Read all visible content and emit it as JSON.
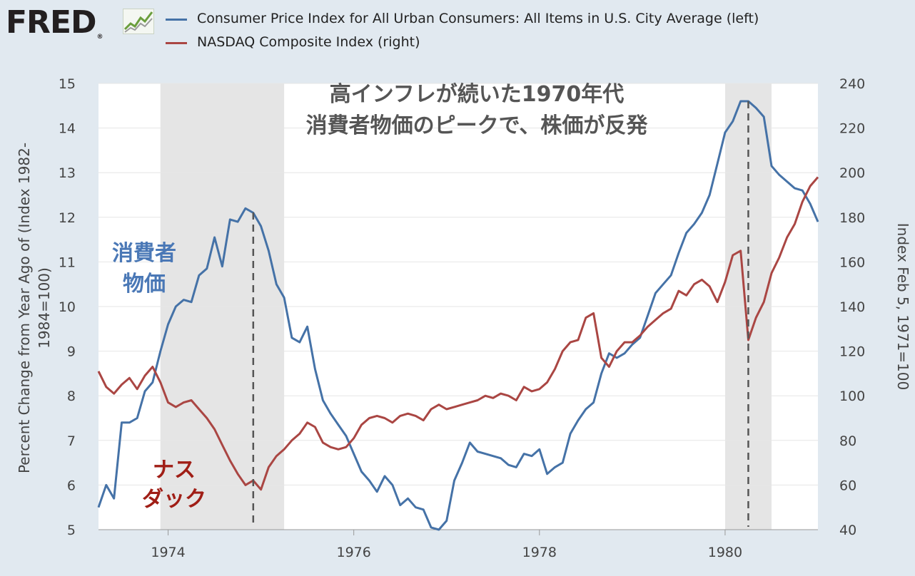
{
  "header": {
    "logo_text": "FRED",
    "logo_registered": "®",
    "legend": [
      {
        "label": "Consumer Price Index for All Urban Consumers: All Items in U.S. City Average (left)",
        "color": "#4572a7"
      },
      {
        "label": "NASDAQ Composite Index (right)",
        "color": "#aa4643"
      }
    ]
  },
  "chart_data": {
    "type": "line",
    "title": [
      "高インフレが続いた1970年代",
      "消費者物価のピークで、株価が反発"
    ],
    "ylabel_left": [
      "Percent Change from Year Ago of (Index 1982-",
      "1984=100)"
    ],
    "ylabel_right": "Index Feb 5, 1971=100",
    "x_ticks": [
      "1974",
      "1976",
      "1978",
      "1980"
    ],
    "y_left_ticks": [
      "5",
      "6",
      "7",
      "8",
      "9",
      "10",
      "11",
      "12",
      "13",
      "14",
      "15"
    ],
    "y_right_ticks": [
      "40",
      "60",
      "80",
      "100",
      "120",
      "140",
      "160",
      "180",
      "200",
      "220",
      "240"
    ],
    "xlim": [
      1973.25,
      1981.0
    ],
    "ylim_left": [
      5,
      15
    ],
    "ylim_right": [
      40,
      240
    ],
    "grid": "horizontal",
    "recessions": [
      [
        1973.917,
        1975.25
      ],
      [
        1980.0,
        1980.5
      ]
    ],
    "markers": [
      1974.917,
      1980.25
    ],
    "annotations": {
      "cpi": [
        "消費者",
        "物価"
      ],
      "nasdaq": [
        "ナス",
        "ダック"
      ]
    },
    "series": [
      {
        "name": "Consumer Price Index for All Urban Consumers: All Items in U.S. City Average (left)",
        "axis": "left",
        "color": "#4572a7",
        "x": [
          1973.25,
          1973.333,
          1973.417,
          1973.5,
          1973.583,
          1973.667,
          1973.75,
          1973.833,
          1973.917,
          1974.0,
          1974.083,
          1974.167,
          1974.25,
          1974.333,
          1974.417,
          1974.5,
          1974.583,
          1974.667,
          1974.75,
          1974.833,
          1974.917,
          1975.0,
          1975.083,
          1975.167,
          1975.25,
          1975.333,
          1975.417,
          1975.5,
          1975.583,
          1975.667,
          1975.75,
          1975.833,
          1975.917,
          1976.0,
          1976.083,
          1976.167,
          1976.25,
          1976.333,
          1976.417,
          1976.5,
          1976.583,
          1976.667,
          1976.75,
          1976.833,
          1976.917,
          1977.0,
          1977.083,
          1977.167,
          1977.25,
          1977.333,
          1977.417,
          1977.5,
          1977.583,
          1977.667,
          1977.75,
          1977.833,
          1977.917,
          1978.0,
          1978.083,
          1978.167,
          1978.25,
          1978.333,
          1978.417,
          1978.5,
          1978.583,
          1978.667,
          1978.75,
          1978.833,
          1978.917,
          1979.0,
          1979.083,
          1979.167,
          1979.25,
          1979.333,
          1979.417,
          1979.5,
          1979.583,
          1979.667,
          1979.75,
          1979.833,
          1979.917,
          1980.0,
          1980.083,
          1980.167,
          1980.25,
          1980.333,
          1980.417,
          1980.5,
          1980.583,
          1980.667,
          1980.75,
          1980.833,
          1980.917,
          1981.0
        ],
        "values": [
          5.5,
          6.0,
          5.7,
          7.4,
          7.4,
          7.5,
          8.1,
          8.3,
          9.0,
          9.6,
          10.0,
          10.15,
          10.1,
          10.7,
          10.85,
          11.55,
          10.9,
          11.95,
          11.9,
          12.2,
          12.1,
          11.8,
          11.25,
          10.5,
          10.2,
          9.3,
          9.2,
          9.55,
          8.6,
          7.9,
          7.6,
          7.35,
          7.1,
          6.7,
          6.3,
          6.1,
          5.85,
          6.2,
          6.0,
          5.55,
          5.7,
          5.5,
          5.45,
          5.05,
          5.0,
          5.2,
          6.1,
          6.5,
          6.95,
          6.75,
          6.7,
          6.65,
          6.6,
          6.45,
          6.4,
          6.7,
          6.65,
          6.8,
          6.25,
          6.4,
          6.5,
          7.15,
          7.45,
          7.7,
          7.85,
          8.5,
          8.95,
          8.85,
          8.95,
          9.15,
          9.3,
          9.8,
          10.3,
          10.5,
          10.7,
          11.2,
          11.65,
          11.85,
          12.1,
          12.5,
          13.2,
          13.9,
          14.15,
          14.6,
          14.6,
          14.45,
          14.25,
          13.15,
          12.95,
          12.8,
          12.65,
          12.6,
          12.3,
          11.9
        ]
      },
      {
        "name": "NASDAQ Composite Index (right)",
        "axis": "right",
        "color": "#aa4643",
        "x": [
          1973.25,
          1973.333,
          1973.417,
          1973.5,
          1973.583,
          1973.667,
          1973.75,
          1973.833,
          1973.917,
          1974.0,
          1974.083,
          1974.167,
          1974.25,
          1974.333,
          1974.417,
          1974.5,
          1974.583,
          1974.667,
          1974.75,
          1974.833,
          1974.917,
          1975.0,
          1975.083,
          1975.167,
          1975.25,
          1975.333,
          1975.417,
          1975.5,
          1975.583,
          1975.667,
          1975.75,
          1975.833,
          1975.917,
          1976.0,
          1976.083,
          1976.167,
          1976.25,
          1976.333,
          1976.417,
          1976.5,
          1976.583,
          1976.667,
          1976.75,
          1976.833,
          1976.917,
          1977.0,
          1977.083,
          1977.167,
          1977.25,
          1977.333,
          1977.417,
          1977.5,
          1977.583,
          1977.667,
          1977.75,
          1977.833,
          1977.917,
          1978.0,
          1978.083,
          1978.167,
          1978.25,
          1978.333,
          1978.417,
          1978.5,
          1978.583,
          1978.667,
          1978.75,
          1978.833,
          1978.917,
          1979.0,
          1979.083,
          1979.167,
          1979.25,
          1979.333,
          1979.417,
          1979.5,
          1979.583,
          1979.667,
          1979.75,
          1979.833,
          1979.917,
          1980.0,
          1980.083,
          1980.167,
          1980.25,
          1980.333,
          1980.417,
          1980.5,
          1980.583,
          1980.667,
          1980.75,
          1980.833,
          1980.917,
          1981.0
        ],
        "values": [
          111,
          104,
          101,
          105,
          108,
          103,
          109,
          113,
          106,
          97,
          95,
          97,
          98,
          94,
          90,
          85,
          78,
          71,
          65,
          60,
          62,
          58,
          68,
          73,
          76,
          80,
          83,
          88,
          86,
          79,
          77,
          76,
          77,
          81,
          87,
          90,
          91,
          90,
          88,
          91,
          92,
          91,
          89,
          94,
          96,
          94,
          95,
          96,
          97,
          98,
          100,
          99,
          101,
          100,
          98,
          104,
          102,
          103,
          106,
          112,
          120,
          124,
          125,
          135,
          137,
          117,
          113,
          120,
          124,
          124,
          127,
          131,
          134,
          137,
          139,
          147,
          145,
          150,
          152,
          149,
          142,
          151,
          163,
          165,
          125,
          135,
          142,
          155,
          162,
          171,
          177,
          187,
          194,
          198
        ]
      }
    ]
  }
}
